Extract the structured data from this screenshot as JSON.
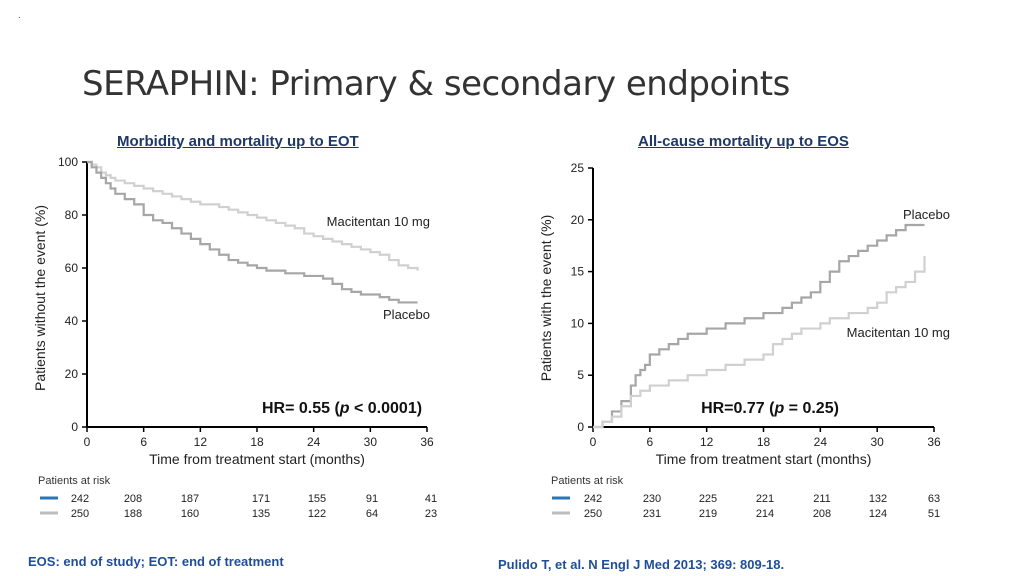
{
  "slide": {
    "marker": ".",
    "title": "SERAPHIN: Primary & secondary endpoints",
    "footnote_left": "EOS: end of study; EOT: end of treatment",
    "footnote_right": "Pulido T, et al. N Engl J Med 2013; 369: 809-18."
  },
  "colors": {
    "macitentan": "#bdbdbd",
    "placebo": "#a8a8a8",
    "risk_blue": "#2e75b6",
    "risk_gray": "#bdbdbd",
    "title_blue": "#1f3864"
  },
  "chart_data": [
    {
      "type": "line",
      "title": "Morbidity and mortality up to EOT",
      "xlabel": "Time from treatment start (months)",
      "ylabel": "Patients without the event (%)",
      "xlim": [
        0,
        36
      ],
      "ylim": [
        0,
        100
      ],
      "xticks": [
        0,
        6,
        12,
        18,
        24,
        30,
        36
      ],
      "yticks": [
        0,
        20,
        40,
        60,
        80,
        100
      ],
      "hr": {
        "prefix": "HR= 0.55 (",
        "p": "p",
        "suffix": " < 0.0001)"
      },
      "series": [
        {
          "name": "Macitentan 10 mg",
          "label_pos": "upper",
          "x": [
            0,
            0.5,
            1,
            1.5,
            2,
            2.5,
            3,
            4,
            5,
            6,
            7,
            8,
            9,
            10,
            11,
            12,
            13,
            14,
            15,
            16,
            17,
            18,
            19,
            20,
            21,
            22,
            23,
            24,
            25,
            26,
            27,
            28,
            29,
            30,
            31,
            32,
            33,
            34,
            35
          ],
          "y": [
            100,
            99,
            98,
            96,
            95,
            94,
            93,
            92,
            91,
            90,
            89,
            88,
            87,
            86,
            85,
            84,
            84,
            83,
            82,
            81,
            80,
            79,
            78,
            77,
            76,
            75,
            73,
            72,
            71,
            70,
            69,
            68,
            67,
            66,
            65,
            63,
            61,
            60,
            59
          ]
        },
        {
          "name": "Placebo",
          "label_pos": "lower",
          "x": [
            0,
            0.5,
            1,
            1.5,
            2,
            2.5,
            3,
            4,
            5,
            6,
            7,
            8,
            9,
            10,
            11,
            12,
            13,
            14,
            15,
            16,
            17,
            18,
            19,
            20,
            21,
            22,
            23,
            24,
            25,
            26,
            27,
            28,
            29,
            30,
            31,
            32,
            33,
            34,
            35
          ],
          "y": [
            100,
            98,
            96,
            94,
            92,
            90,
            88,
            86,
            84,
            80,
            78,
            77,
            75,
            73,
            71,
            69,
            67,
            65,
            63,
            62,
            61,
            60,
            59,
            59,
            58,
            58,
            57,
            57,
            56,
            54,
            52,
            51,
            50,
            50,
            49,
            48,
            47,
            47,
            47
          ]
        }
      ],
      "risk": {
        "label": "Patients at risk",
        "rows": [
          {
            "values": [
              "242",
              "208",
              "187",
              "171",
              "155",
              "91",
              "41"
            ]
          },
          {
            "values": [
              "250",
              "188",
              "160",
              "135",
              "122",
              "64",
              "23"
            ]
          }
        ]
      }
    },
    {
      "type": "line",
      "title": "All-cause mortality up to EOS",
      "xlabel": "Time from treatment start (months)",
      "ylabel": "Patients with the event (%)",
      "xlim": [
        0,
        36
      ],
      "ylim": [
        0,
        25
      ],
      "xticks": [
        0,
        6,
        12,
        18,
        24,
        30,
        36
      ],
      "yticks": [
        0,
        5,
        10,
        15,
        20,
        25
      ],
      "hr": {
        "prefix": "HR=0.77  (",
        "p": "p",
        "suffix": "  = 0.25)"
      },
      "series": [
        {
          "name": "Placebo",
          "label_pos": "upper",
          "x": [
            0,
            1,
            2,
            3,
            4,
            4.5,
            5,
            5.5,
            6,
            7,
            8,
            9,
            10,
            12,
            14,
            16,
            18,
            20,
            21,
            22,
            23,
            24,
            25,
            26,
            27,
            28,
            29,
            30,
            31,
            32,
            33,
            34,
            35
          ],
          "y": [
            0,
            0.5,
            1.5,
            2.5,
            4,
            5,
            5.5,
            6,
            7,
            7.5,
            8,
            8.5,
            9,
            9.5,
            10,
            10.5,
            11,
            11.5,
            12,
            12.5,
            13,
            14,
            15,
            16,
            16.5,
            17,
            17.5,
            18,
            18.5,
            19,
            19.5,
            19.5,
            19.5
          ]
        },
        {
          "name": "Macitentan 10 mg",
          "label_pos": "lower",
          "x": [
            0,
            1,
            2,
            3,
            4,
            5,
            6,
            8,
            10,
            12,
            14,
            16,
            18,
            19,
            20,
            21,
            22,
            23,
            24,
            25,
            26,
            27,
            28,
            29,
            30,
            31,
            32,
            33,
            34,
            35
          ],
          "y": [
            0,
            0.5,
            1,
            2,
            3,
            3.5,
            4,
            4.5,
            5,
            5.5,
            6,
            6.5,
            7,
            8,
            8.5,
            9,
            9.5,
            9.5,
            10,
            10.5,
            10.5,
            11,
            11,
            11.5,
            12,
            13,
            13.5,
            14,
            15,
            16.5
          ]
        }
      ],
      "risk": {
        "label": "Patients at risk",
        "rows": [
          {
            "values": [
              "242",
              "230",
              "225",
              "221",
              "211",
              "132",
              "63"
            ]
          },
          {
            "values": [
              "250",
              "231",
              "219",
              "214",
              "208",
              "124",
              "51"
            ]
          }
        ]
      }
    }
  ]
}
